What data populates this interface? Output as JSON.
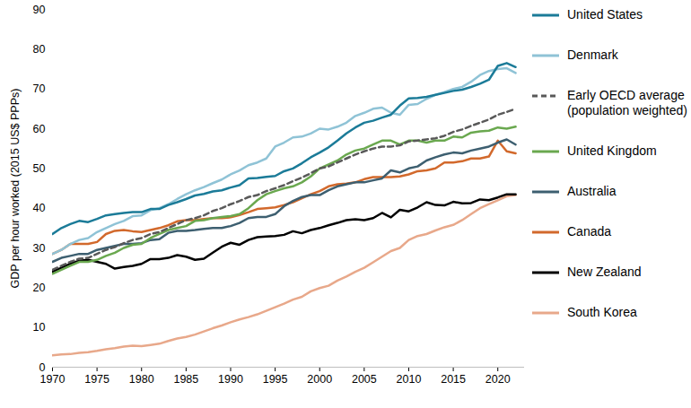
{
  "chart_data": {
    "type": "line",
    "y_label": "GDP per hour worked (2015 US$ PPPs)",
    "x": [
      1970,
      1971,
      1972,
      1973,
      1974,
      1975,
      1976,
      1977,
      1978,
      1979,
      1980,
      1981,
      1982,
      1983,
      1984,
      1985,
      1986,
      1987,
      1988,
      1989,
      1990,
      1991,
      1992,
      1993,
      1994,
      1995,
      1996,
      1997,
      1998,
      1999,
      2000,
      2001,
      2002,
      2003,
      2004,
      2005,
      2006,
      2007,
      2008,
      2009,
      2010,
      2011,
      2012,
      2013,
      2014,
      2015,
      2016,
      2017,
      2018,
      2019,
      2020,
      2021,
      2022
    ],
    "xlim": [
      1970,
      2023
    ],
    "xticks": [
      1970,
      1975,
      1980,
      1985,
      1990,
      1995,
      2000,
      2005,
      2010,
      2015,
      2020
    ],
    "ylim": [
      0,
      90
    ],
    "yticks": [
      0,
      10,
      20,
      30,
      40,
      50,
      60,
      70,
      80,
      90
    ],
    "grid": false,
    "legend": "right",
    "series": [
      {
        "name": "United States",
        "color": "#1b7b98",
        "line_style": "solid",
        "values": [
          33.5,
          35,
          36,
          36.8,
          36.5,
          37.3,
          38.2,
          38.5,
          38.8,
          39,
          39,
          39.8,
          39.8,
          40.8,
          41.5,
          42.3,
          43.2,
          43.6,
          44.2,
          44.5,
          45.2,
          45.8,
          47.5,
          47.6,
          47.9,
          48.1,
          49.3,
          50,
          51.3,
          52.8,
          54,
          55.3,
          57,
          58.8,
          60.3,
          61.5,
          62,
          62.8,
          63.5,
          65.8,
          67.6,
          67.7,
          68,
          68.5,
          69,
          69.5,
          69.8,
          70.5,
          71.3,
          72.3,
          75.8,
          76.5,
          75.5
        ]
      },
      {
        "name": "Denmark",
        "color": "#8fc3d6",
        "line_style": "solid",
        "values": [
          28.5,
          29.5,
          31,
          32,
          32.5,
          34,
          35,
          36,
          36.8,
          38,
          38.2,
          39.5,
          40,
          41,
          42.3,
          43.5,
          44.5,
          45.3,
          46.3,
          47.2,
          48.5,
          49.5,
          50.8,
          51.5,
          52.5,
          55.5,
          56.5,
          57.8,
          58,
          58.8,
          60,
          59.8,
          60.5,
          61.5,
          63.2,
          64,
          65,
          65.3,
          64,
          63.5,
          66,
          66.2,
          67.5,
          68.5,
          69.2,
          70,
          70.5,
          71.8,
          73.5,
          74.5,
          75,
          75.2,
          74
        ]
      },
      {
        "name": "Early OECD average (population weighted)",
        "color": "#595959",
        "line_style": "dashed",
        "values": [
          24.5,
          25.5,
          26.5,
          27.3,
          27.5,
          28.5,
          29.5,
          30.2,
          31.2,
          32,
          32.5,
          33.5,
          34,
          35,
          36,
          37,
          37.5,
          38.2,
          39.3,
          40,
          41,
          41.8,
          42.8,
          43.3,
          44.3,
          45,
          45.8,
          46.8,
          47.7,
          48.8,
          50,
          50.5,
          51.5,
          52.5,
          53.5,
          54.3,
          55,
          55.5,
          55.5,
          55.8,
          56.8,
          57,
          57.3,
          57.6,
          58.2,
          59.2,
          59.8,
          60.7,
          61.5,
          62.3,
          63.5,
          64.2,
          65
        ]
      },
      {
        "name": "United Kingdom",
        "color": "#6aa84f",
        "line_style": "solid",
        "values": [
          23.5,
          24.5,
          25.5,
          26.5,
          26.5,
          27,
          28,
          28.8,
          30,
          30.8,
          31,
          32.5,
          33.5,
          34.5,
          35,
          35.5,
          36.8,
          37,
          37.5,
          37.8,
          38,
          38.5,
          40,
          42,
          43.5,
          44.3,
          45,
          45.5,
          46.5,
          48,
          50,
          51,
          52,
          53.5,
          54.5,
          55,
          56,
          57,
          57,
          56,
          57,
          57,
          56.5,
          57,
          57,
          58,
          57.8,
          59,
          59.3,
          59.5,
          60.3,
          60,
          60.5
        ]
      },
      {
        "name": "Australia",
        "color": "#3d5f70",
        "line_style": "solid",
        "values": [
          26.5,
          27.5,
          28,
          28.5,
          28.5,
          29.5,
          30,
          30.5,
          31,
          31,
          31.2,
          32,
          32.2,
          33.8,
          34.3,
          34.3,
          34.5,
          34.8,
          35,
          35,
          35.5,
          36.3,
          37.5,
          37.8,
          37.8,
          38.5,
          40.5,
          41.8,
          42.8,
          43.3,
          43.3,
          44.5,
          45.5,
          46,
          46.5,
          46.5,
          47,
          47.5,
          49.5,
          49,
          50,
          50.5,
          52,
          52.8,
          53.5,
          54,
          53.8,
          54.5,
          55,
          55.5,
          56.5,
          57.3,
          56
        ]
      },
      {
        "name": "Canada",
        "color": "#d2692c",
        "line_style": "solid",
        "values": [
          28.5,
          29.5,
          31,
          31,
          31,
          31.5,
          33.5,
          34.3,
          34.5,
          34.2,
          34,
          34.5,
          35,
          35.7,
          36.7,
          37,
          37,
          37.3,
          37.5,
          37.5,
          37.7,
          38.3,
          39,
          39.8,
          40,
          40.2,
          40.8,
          41.5,
          42.5,
          43.5,
          44.3,
          45.5,
          46,
          46.2,
          46.5,
          47.3,
          47.8,
          47.8,
          47.8,
          48,
          48.5,
          49.3,
          49.5,
          50,
          51.5,
          51.5,
          51.8,
          52.5,
          52.5,
          53,
          57,
          54.3,
          53.8
        ]
      },
      {
        "name": "New Zealand",
        "color": "#000000",
        "line_style": "solid",
        "values": [
          24,
          25,
          26,
          26.8,
          27,
          26.5,
          26,
          24.8,
          25.2,
          25.5,
          26,
          27.2,
          27.2,
          27.5,
          28.2,
          27.8,
          27,
          27.3,
          28.8,
          30.3,
          31.3,
          30.8,
          32,
          32.7,
          32.9,
          33,
          33.3,
          34.2,
          33.7,
          34.5,
          35,
          35.7,
          36.3,
          37,
          37.2,
          37,
          37.5,
          38.8,
          37.7,
          39.6,
          39.2,
          40.2,
          41.5,
          40.8,
          40.7,
          41.6,
          41.2,
          41.3,
          42.2,
          42,
          42.7,
          43.5,
          43.5
        ]
      },
      {
        "name": "South Korea",
        "color": "#e8a88a",
        "line_style": "solid",
        "values": [
          3,
          3.2,
          3.3,
          3.6,
          3.8,
          4.1,
          4.5,
          4.8,
          5.2,
          5.4,
          5.3,
          5.6,
          5.9,
          6.6,
          7.2,
          7.6,
          8.2,
          9,
          9.8,
          10.5,
          11.3,
          12,
          12.6,
          13.3,
          14.2,
          15.1,
          16,
          17,
          17.7,
          19.1,
          19.9,
          20.5,
          21.8,
          22.8,
          24,
          25,
          26.4,
          27.8,
          29.2,
          30,
          32,
          33,
          33.5,
          34.4,
          35.2,
          35.8,
          37,
          38.5,
          40,
          41,
          42,
          43,
          43.3
        ]
      }
    ]
  }
}
